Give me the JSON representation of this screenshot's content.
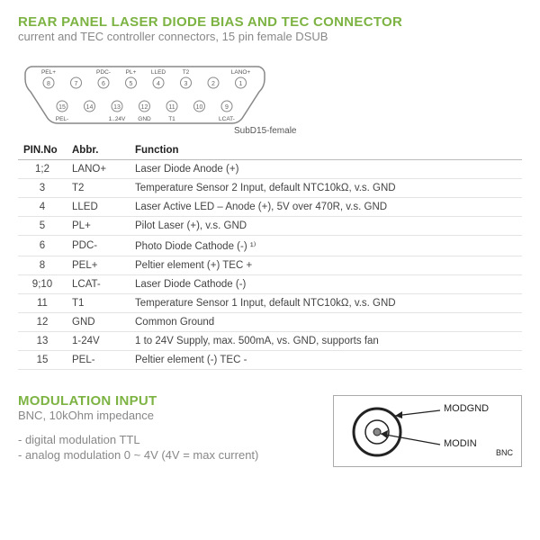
{
  "header": {
    "title": "REAR PANEL LASER DIODE BIAS AND TEC CONNECTOR",
    "subtitle": "current and TEC controller connectors, 15 pin female DSUB"
  },
  "connector": {
    "caption": "SubD15-female",
    "top_pins": [
      {
        "n": 8,
        "lbl": "PEL+"
      },
      {
        "n": 7,
        "lbl": ""
      },
      {
        "n": 6,
        "lbl": "PDC-"
      },
      {
        "n": 5,
        "lbl": "PL+"
      },
      {
        "n": 4,
        "lbl": "LLED"
      },
      {
        "n": 3,
        "lbl": "T2"
      },
      {
        "n": 2,
        "lbl": ""
      },
      {
        "n": 1,
        "lbl": "LANO+"
      }
    ],
    "bot_pins": [
      {
        "n": 15,
        "lbl": "PEL-"
      },
      {
        "n": 14,
        "lbl": ""
      },
      {
        "n": 13,
        "lbl": "1..24V"
      },
      {
        "n": 12,
        "lbl": "GND"
      },
      {
        "n": 11,
        "lbl": "T1"
      },
      {
        "n": 10,
        "lbl": ""
      },
      {
        "n": 9,
        "lbl": "LCAT-"
      }
    ]
  },
  "table": {
    "columns": [
      "PIN.No",
      "Abbr.",
      "Function"
    ],
    "rows": [
      [
        "1;2",
        "LANO+",
        "Laser Diode Anode (+)"
      ],
      [
        "3",
        "T2",
        "Temperature Sensor 2 Input, default NTC10kΩ, v.s. GND"
      ],
      [
        "4",
        "LLED",
        "Laser Active LED – Anode (+), 5V over 470R, v.s. GND"
      ],
      [
        "5",
        "PL+",
        "Pilot Laser (+), v.s. GND"
      ],
      [
        "6",
        "PDC-",
        "Photo Diode Cathode (-) ¹⁾"
      ],
      [
        "8",
        "PEL+",
        "Peltier element (+) TEC +"
      ],
      [
        "9;10",
        "LCAT-",
        "Laser Diode Cathode (-)"
      ],
      [
        "11",
        "T1",
        "Temperature Sensor 1 Input,  default NTC10kΩ, v.s. GND"
      ],
      [
        "12",
        "GND",
        "Common Ground"
      ],
      [
        "13",
        "1-24V",
        "1 to 24V Supply, max. 500mA, vs. GND, supports fan"
      ],
      [
        "15",
        "PEL-",
        "Peltier element (-) TEC -"
      ]
    ]
  },
  "modulation": {
    "title": "MODULATION INPUT",
    "subtitle": "BNC, 10kOhm impedance",
    "bullets": [
      "- digital modulation TTL",
      "- analog modulation 0 ~ 4V (4V = max current)"
    ],
    "bnc": {
      "outer": "MODGND",
      "inner": "MODIN",
      "type": "BNC"
    }
  },
  "colors": {
    "accent": "#7cb342",
    "muted": "#888888",
    "border": "#bbbbbb"
  }
}
